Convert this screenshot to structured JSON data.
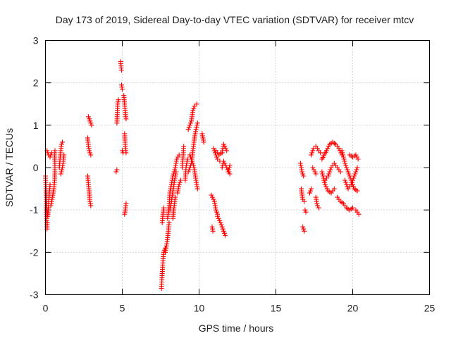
{
  "chart_data": {
    "type": "scatter",
    "title": "Day 173 of 2019, Sidereal Day-to-day VTEC variation (SDTVAR) for receiver mtcv",
    "xlabel": "GPS time / hours",
    "ylabel": "SDTVAR / TECUs",
    "xlim": [
      0,
      25
    ],
    "ylim": [
      -3,
      3
    ],
    "xticks": [
      "0",
      "5",
      "10",
      "15",
      "20",
      "25"
    ],
    "yticks": [
      "-3",
      "-2",
      "-1",
      "0",
      "1",
      "2",
      "3"
    ],
    "grid": true,
    "marker": "+",
    "color": "#ff0000",
    "segments": [
      [
        [
          0.0,
          -0.2
        ],
        [
          0.05,
          -0.6
        ],
        [
          0.1,
          -1.0
        ],
        [
          0.15,
          -1.15
        ],
        [
          0.2,
          -0.9
        ],
        [
          0.25,
          -0.6
        ],
        [
          0.3,
          -0.4
        ]
      ],
      [
        [
          0.05,
          -0.8
        ],
        [
          0.1,
          -1.45
        ],
        [
          0.12,
          -1.3
        ]
      ],
      [
        [
          0.1,
          0.4
        ],
        [
          0.2,
          0.3
        ],
        [
          0.3,
          0.25
        ],
        [
          0.4,
          0.35
        ]
      ],
      [
        [
          0.35,
          -0.9
        ],
        [
          0.45,
          -0.7
        ],
        [
          0.55,
          -0.5
        ],
        [
          0.6,
          -0.3
        ],
        [
          0.62,
          0.0
        ],
        [
          0.6,
          0.3
        ],
        [
          0.62,
          0.4
        ]
      ],
      [
        [
          0.9,
          0.0
        ],
        [
          0.95,
          0.2
        ],
        [
          1.0,
          0.4
        ],
        [
          1.05,
          0.55
        ],
        [
          1.1,
          0.6
        ]
      ],
      [
        [
          1.0,
          -0.15
        ],
        [
          1.1,
          0.0
        ],
        [
          1.15,
          0.1
        ],
        [
          1.2,
          0.3
        ]
      ],
      [
        [
          2.75,
          0.7
        ],
        [
          2.8,
          0.5
        ],
        [
          2.85,
          0.4
        ],
        [
          2.95,
          0.3
        ]
      ],
      [
        [
          2.75,
          -0.2
        ],
        [
          2.8,
          -0.4
        ],
        [
          2.85,
          -0.6
        ],
        [
          2.9,
          -0.8
        ],
        [
          2.95,
          -0.9
        ]
      ],
      [
        [
          2.8,
          1.2
        ],
        [
          2.9,
          1.1
        ],
        [
          3.0,
          1.0
        ]
      ],
      [
        [
          4.6,
          -0.1
        ],
        [
          4.65,
          -0.05
        ]
      ],
      [
        [
          4.65,
          1.05
        ],
        [
          4.7,
          1.5
        ],
        [
          4.75,
          1.6
        ]
      ],
      [
        [
          4.9,
          2.5
        ],
        [
          4.92,
          2.4
        ],
        [
          4.95,
          2.3
        ]
      ],
      [
        [
          4.95,
          1.95
        ],
        [
          5.0,
          1.85
        ]
      ],
      [
        [
          5.0,
          0.4
        ],
        [
          5.05,
          0.35
        ]
      ],
      [
        [
          5.1,
          1.7
        ],
        [
          5.15,
          1.5
        ],
        [
          5.2,
          1.3
        ],
        [
          5.25,
          1.15
        ]
      ],
      [
        [
          5.15,
          0.8
        ],
        [
          5.2,
          0.5
        ],
        [
          5.25,
          0.35
        ]
      ],
      [
        [
          5.15,
          -1.1
        ],
        [
          5.2,
          -1.0
        ],
        [
          5.25,
          -0.85
        ]
      ],
      [
        [
          7.55,
          -2.85
        ],
        [
          7.6,
          -2.5
        ],
        [
          7.65,
          -2.2
        ],
        [
          7.7,
          -2.0
        ],
        [
          7.8,
          -1.9
        ]
      ],
      [
        [
          7.6,
          -1.3
        ],
        [
          7.65,
          -1.1
        ],
        [
          7.7,
          -0.95
        ]
      ],
      [
        [
          7.8,
          -2.0
        ],
        [
          7.9,
          -1.8
        ],
        [
          8.0,
          -1.5
        ],
        [
          8.05,
          -1.3
        ]
      ],
      [
        [
          7.95,
          -1.2
        ],
        [
          8.05,
          -0.9
        ],
        [
          8.1,
          -0.6
        ],
        [
          8.2,
          -0.4
        ],
        [
          8.3,
          -0.2
        ]
      ],
      [
        [
          8.1,
          -1.0
        ],
        [
          8.2,
          -0.8
        ],
        [
          8.3,
          -0.55
        ],
        [
          8.4,
          -0.3
        ],
        [
          8.5,
          -0.1
        ]
      ],
      [
        [
          8.3,
          -1.2
        ],
        [
          8.35,
          -1.0
        ],
        [
          8.45,
          -0.7
        ]
      ],
      [
        [
          8.3,
          -0.2
        ],
        [
          8.45,
          0.0
        ],
        [
          8.55,
          0.2
        ],
        [
          8.7,
          0.3
        ]
      ],
      [
        [
          8.6,
          -0.6
        ],
        [
          8.7,
          -0.4
        ],
        [
          8.8,
          -0.3
        ]
      ],
      [
        [
          8.9,
          0.0
        ],
        [
          8.95,
          0.2
        ],
        [
          9.0,
          0.5
        ]
      ],
      [
        [
          9.1,
          -0.3
        ],
        [
          9.15,
          0.0
        ],
        [
          9.25,
          0.2
        ]
      ],
      [
        [
          9.3,
          0.9
        ],
        [
          9.5,
          1.1
        ],
        [
          9.6,
          1.35
        ],
        [
          9.7,
          1.45
        ],
        [
          9.85,
          1.5
        ]
      ],
      [
        [
          9.3,
          -0.1
        ],
        [
          9.5,
          0.1
        ],
        [
          9.6,
          0.4
        ],
        [
          9.7,
          0.7
        ],
        [
          9.8,
          0.9
        ],
        [
          9.9,
          1.05
        ]
      ],
      [
        [
          9.4,
          0.3
        ],
        [
          9.5,
          0.2
        ],
        [
          9.6,
          0.1
        ],
        [
          9.7,
          -0.05
        ],
        [
          9.8,
          -0.3
        ],
        [
          9.9,
          -0.5
        ]
      ],
      [
        [
          10.2,
          0.8
        ],
        [
          10.3,
          0.6
        ]
      ],
      [
        [
          10.95,
          0.45
        ],
        [
          11.1,
          0.3
        ],
        [
          11.2,
          0.2
        ],
        [
          11.35,
          0.15
        ]
      ],
      [
        [
          11.1,
          0.4
        ],
        [
          11.3,
          0.3
        ],
        [
          11.5,
          0.35
        ],
        [
          11.6,
          0.55
        ],
        [
          11.8,
          0.4
        ]
      ],
      [
        [
          11.5,
          0.0
        ],
        [
          11.6,
          0.15
        ],
        [
          11.8,
          0.0
        ],
        [
          11.9,
          -0.1
        ],
        [
          12.0,
          0.05
        ]
      ],
      [
        [
          11.9,
          -0.05
        ],
        [
          12.0,
          -0.15
        ]
      ],
      [
        [
          10.8,
          -0.65
        ],
        [
          11.0,
          -0.8
        ],
        [
          11.1,
          -1.0
        ],
        [
          11.2,
          -1.1
        ]
      ],
      [
        [
          10.85,
          -1.4
        ],
        [
          10.9,
          -1.5
        ]
      ],
      [
        [
          11.2,
          -1.15
        ],
        [
          11.4,
          -1.3
        ],
        [
          11.6,
          -1.5
        ],
        [
          11.7,
          -1.6
        ]
      ],
      [
        [
          16.6,
          0.1
        ],
        [
          16.7,
          -0.1
        ],
        [
          16.8,
          -0.2
        ]
      ],
      [
        [
          16.65,
          -0.5
        ],
        [
          16.75,
          -0.75
        ],
        [
          16.85,
          -0.8
        ]
      ],
      [
        [
          16.75,
          -1.4
        ],
        [
          16.85,
          -1.5
        ]
      ],
      [
        [
          16.9,
          -1.0
        ],
        [
          16.95,
          -1.05
        ]
      ],
      [
        [
          17.2,
          -0.6
        ],
        [
          17.3,
          -0.5
        ]
      ],
      [
        [
          17.3,
          0.3
        ],
        [
          17.45,
          0.45
        ],
        [
          17.6,
          0.5
        ],
        [
          17.8,
          0.4
        ],
        [
          17.9,
          0.35
        ]
      ],
      [
        [
          17.4,
          0.0
        ],
        [
          17.55,
          -0.1
        ],
        [
          17.6,
          -0.15
        ]
      ],
      [
        [
          17.6,
          -0.7
        ],
        [
          17.7,
          -0.9
        ],
        [
          17.8,
          -0.95
        ]
      ],
      [
        [
          18.0,
          0.2
        ],
        [
          18.3,
          0.4
        ],
        [
          18.5,
          0.55
        ],
        [
          18.7,
          0.6
        ],
        [
          18.9,
          0.55
        ],
        [
          19.1,
          0.45
        ],
        [
          19.3,
          0.3
        ]
      ],
      [
        [
          18.2,
          -0.3
        ],
        [
          18.4,
          -0.2
        ],
        [
          18.6,
          0.0
        ],
        [
          18.8,
          0.1
        ],
        [
          19.0,
          0.0
        ],
        [
          19.2,
          -0.1
        ]
      ],
      [
        [
          18.0,
          -0.1
        ],
        [
          18.2,
          -0.4
        ],
        [
          18.4,
          -0.55
        ],
        [
          18.6,
          -0.6
        ],
        [
          18.8,
          -0.5
        ]
      ],
      [
        [
          19.0,
          -0.7
        ],
        [
          19.2,
          -0.8
        ],
        [
          19.4,
          -0.85
        ],
        [
          19.6,
          -0.95
        ],
        [
          19.8,
          -1.0
        ],
        [
          20.0,
          -0.95
        ]
      ],
      [
        [
          19.3,
          0.4
        ],
        [
          19.5,
          0.1
        ],
        [
          19.7,
          -0.1
        ],
        [
          19.9,
          -0.3
        ],
        [
          20.1,
          -0.5
        ],
        [
          20.3,
          -0.55
        ]
      ],
      [
        [
          19.5,
          -0.3
        ],
        [
          19.7,
          -0.5
        ],
        [
          19.9,
          -0.4
        ],
        [
          20.1,
          -0.2
        ],
        [
          20.3,
          0.0
        ]
      ],
      [
        [
          19.8,
          0.3
        ],
        [
          20.0,
          0.25
        ],
        [
          20.2,
          0.3
        ],
        [
          20.35,
          0.2
        ]
      ],
      [
        [
          20.2,
          -1.0
        ],
        [
          20.3,
          -1.05
        ],
        [
          20.4,
          -1.1
        ]
      ]
    ]
  }
}
